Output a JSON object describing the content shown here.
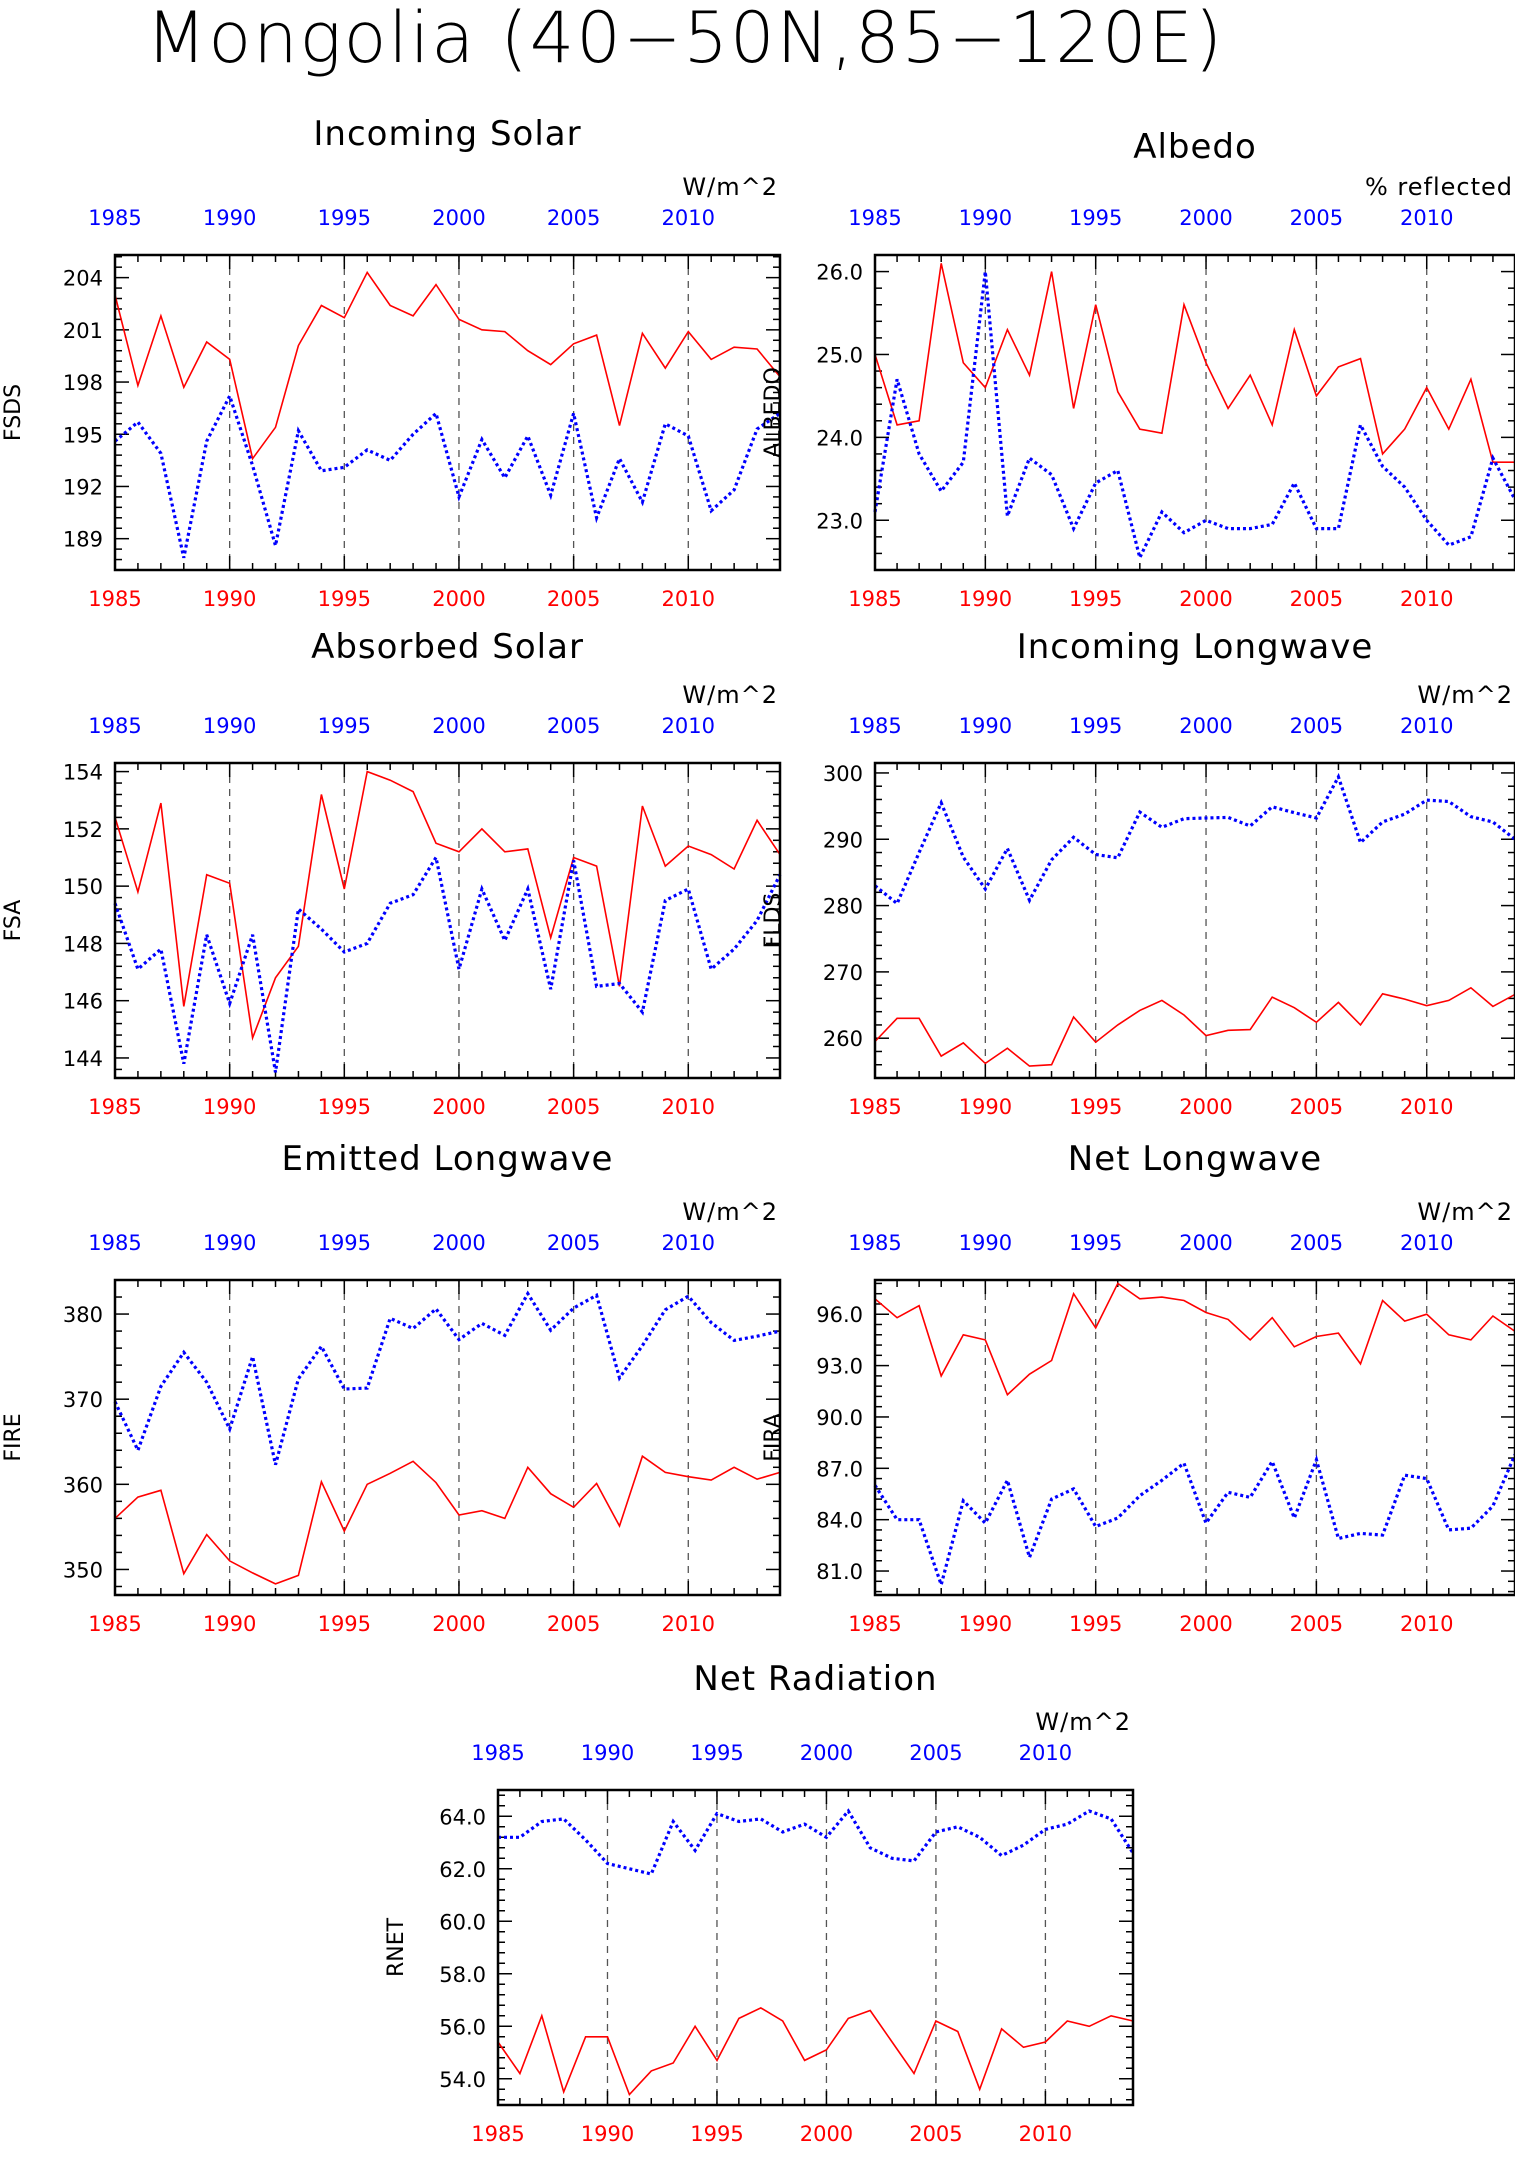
{
  "title": "Mongolia (40−50N,85−120E)",
  "colors": {
    "series_a": "#ff0000",
    "series_b": "#0000ff",
    "axis": "#000000",
    "grid": "#555555"
  },
  "chart_data": [
    {
      "type": "line",
      "title": "Incoming Solar",
      "units": "W/m^2",
      "ylabel": "FSDS",
      "xlim": [
        1985,
        2014
      ],
      "ylim": [
        187.2,
        205.3
      ],
      "yticks": [
        189,
        192,
        195,
        198,
        201,
        204
      ],
      "ytick_labels": [
        "189",
        "192",
        "195",
        "198",
        "201",
        "204"
      ],
      "xticks": [
        1985,
        1990,
        1995,
        2000,
        2005,
        2010
      ],
      "grid": "dashed vertical at 1990, 1995, 2000, 2005, 2010",
      "x": [
        1985,
        1986,
        1987,
        1988,
        1989,
        1990,
        1991,
        1992,
        1993,
        1994,
        1995,
        1996,
        1997,
        1998,
        1999,
        2000,
        2001,
        2002,
        2003,
        2004,
        2005,
        2006,
        2007,
        2008,
        2009,
        2010,
        2011,
        2012,
        2013,
        2014
      ],
      "series": [
        {
          "style": "solid",
          "color": "#ff0000",
          "values": [
            203.0,
            197.8,
            201.8,
            197.7,
            200.3,
            199.3,
            193.6,
            195.4,
            200.1,
            202.4,
            201.7,
            204.3,
            202.4,
            201.8,
            203.6,
            201.6,
            201.0,
            200.9,
            199.8,
            199.0,
            200.2,
            200.7,
            195.5,
            200.8,
            198.8,
            200.9,
            199.3,
            200.0,
            199.9,
            198.3
          ]
        },
        {
          "style": "dotted",
          "color": "#0000ff",
          "values": [
            194.6,
            195.7,
            193.9,
            187.9,
            194.6,
            197.2,
            193.2,
            188.6,
            195.2,
            192.9,
            193.1,
            194.1,
            193.5,
            195.0,
            196.2,
            191.4,
            194.7,
            192.5,
            194.9,
            191.5,
            196.2,
            190.2,
            193.6,
            191.1,
            195.6,
            194.9,
            190.6,
            191.8,
            195.3,
            196.2
          ]
        }
      ]
    },
    {
      "type": "line",
      "title": "Albedo",
      "units": "% reflected",
      "ylabel": "ALBEDO",
      "xlim": [
        1985,
        2014
      ],
      "ylim": [
        22.4,
        26.2
      ],
      "yticks": [
        23.0,
        24.0,
        25.0,
        26.0
      ],
      "ytick_labels": [
        "23.0",
        "24.0",
        "25.0",
        "26.0"
      ],
      "xticks": [
        1985,
        1990,
        1995,
        2000,
        2005,
        2010
      ],
      "grid": "dashed vertical at 1990, 1995, 2000, 2005, 2010",
      "x": [
        1985,
        1986,
        1987,
        1988,
        1989,
        1990,
        1991,
        1992,
        1993,
        1994,
        1995,
        1996,
        1997,
        1998,
        1999,
        2000,
        2001,
        2002,
        2003,
        2004,
        2005,
        2006,
        2007,
        2008,
        2009,
        2010,
        2011,
        2012,
        2013,
        2014
      ],
      "series": [
        {
          "style": "solid",
          "color": "#ff0000",
          "values": [
            25.0,
            24.15,
            24.2,
            26.1,
            24.9,
            24.6,
            25.3,
            24.75,
            26.0,
            24.35,
            25.6,
            24.55,
            24.1,
            24.05,
            25.6,
            24.9,
            24.35,
            24.75,
            24.15,
            25.3,
            24.5,
            24.85,
            24.95,
            23.8,
            24.1,
            24.6,
            24.1,
            24.7,
            23.7,
            23.7
          ]
        },
        {
          "style": "dotted",
          "color": "#0000ff",
          "values": [
            23.1,
            24.7,
            23.8,
            23.35,
            23.7,
            26.0,
            23.05,
            23.75,
            23.55,
            22.9,
            23.45,
            23.6,
            22.55,
            23.1,
            22.85,
            23.0,
            22.9,
            22.9,
            22.95,
            23.45,
            22.9,
            22.9,
            24.15,
            23.65,
            23.4,
            23.0,
            22.7,
            22.8,
            23.75,
            23.25
          ]
        }
      ]
    },
    {
      "type": "line",
      "title": "Absorbed Solar",
      "units": "W/m^2",
      "ylabel": "FSA",
      "xlim": [
        1985,
        2014
      ],
      "ylim": [
        143.3,
        154.3
      ],
      "yticks": [
        144,
        146,
        148,
        150,
        152,
        154
      ],
      "ytick_labels": [
        "144",
        "146",
        "148",
        "150",
        "152",
        "154"
      ],
      "xticks": [
        1985,
        1990,
        1995,
        2000,
        2005,
        2010
      ],
      "grid": "dashed vertical at 1990, 1995, 2000, 2005, 2010",
      "x": [
        1985,
        1986,
        1987,
        1988,
        1989,
        1990,
        1991,
        1992,
        1993,
        1994,
        1995,
        1996,
        1997,
        1998,
        1999,
        2000,
        2001,
        2002,
        2003,
        2004,
        2005,
        2006,
        2007,
        2008,
        2009,
        2010,
        2011,
        2012,
        2013,
        2014
      ],
      "series": [
        {
          "style": "solid",
          "color": "#ff0000",
          "values": [
            152.4,
            149.8,
            152.9,
            145.8,
            150.4,
            150.1,
            144.7,
            146.8,
            147.9,
            153.2,
            149.9,
            154.0,
            153.7,
            153.3,
            151.5,
            151.2,
            152.0,
            151.2,
            151.3,
            148.2,
            151.0,
            150.7,
            146.5,
            152.8,
            150.7,
            151.4,
            151.1,
            150.6,
            152.3,
            151.1
          ]
        },
        {
          "style": "dotted",
          "color": "#0000ff",
          "values": [
            149.4,
            147.1,
            147.8,
            143.8,
            148.3,
            145.9,
            148.3,
            143.5,
            149.2,
            148.5,
            147.7,
            148.0,
            149.4,
            149.7,
            151.0,
            147.1,
            149.9,
            148.1,
            149.9,
            146.4,
            150.9,
            146.5,
            146.6,
            145.6,
            149.5,
            149.9,
            147.1,
            147.8,
            148.8,
            150.4
          ]
        }
      ]
    },
    {
      "type": "line",
      "title": "Incoming Longwave",
      "units": "W/m^2",
      "ylabel": "FLDS",
      "xlim": [
        1985,
        2014
      ],
      "ylim": [
        254.0,
        301.5
      ],
      "yticks": [
        260,
        270,
        280,
        290,
        300
      ],
      "ytick_labels": [
        "260",
        "270",
        "280",
        "290",
        "300"
      ],
      "xticks": [
        1985,
        1990,
        1995,
        2000,
        2005,
        2010
      ],
      "grid": "dashed vertical at 1990, 1995, 2000, 2005, 2010",
      "x": [
        1985,
        1986,
        1987,
        1988,
        1989,
        1990,
        1991,
        1992,
        1993,
        1994,
        1995,
        1996,
        1997,
        1998,
        1999,
        2000,
        2001,
        2002,
        2003,
        2004,
        2005,
        2006,
        2007,
        2008,
        2009,
        2010,
        2011,
        2012,
        2013,
        2014
      ],
      "series": [
        {
          "style": "solid",
          "color": "#ff0000",
          "values": [
            259.5,
            263.0,
            263.0,
            257.3,
            259.3,
            256.2,
            258.5,
            255.8,
            256.0,
            263.2,
            259.4,
            262.0,
            264.2,
            265.7,
            263.5,
            260.4,
            261.2,
            261.3,
            266.2,
            264.6,
            262.4,
            265.4,
            262.0,
            266.7,
            265.9,
            264.9,
            265.7,
            267.6,
            264.8,
            266.6
          ]
        },
        {
          "style": "dotted",
          "color": "#0000ff",
          "values": [
            283.0,
            280.3,
            288.0,
            295.5,
            287.3,
            282.5,
            288.6,
            280.8,
            286.9,
            290.3,
            287.7,
            287.2,
            294.1,
            291.8,
            293.1,
            293.2,
            293.3,
            292.0,
            294.9,
            294.0,
            293.2,
            299.4,
            289.5,
            292.6,
            293.8,
            295.9,
            295.7,
            293.4,
            292.6,
            290.0
          ]
        }
      ]
    },
    {
      "type": "line",
      "title": "Emitted Longwave",
      "units": "W/m^2",
      "ylabel": "FIRE",
      "xlim": [
        1985,
        2014
      ],
      "ylim": [
        347.0,
        384.0
      ],
      "yticks": [
        350,
        360,
        370,
        380
      ],
      "ytick_labels": [
        "350",
        "360",
        "370",
        "380"
      ],
      "xticks": [
        1985,
        1990,
        1995,
        2000,
        2005,
        2010
      ],
      "grid": "dashed vertical at 1990, 1995, 2000, 2005, 2010",
      "x": [
        1985,
        1986,
        1987,
        1988,
        1989,
        1990,
        1991,
        1992,
        1993,
        1994,
        1995,
        1996,
        1997,
        1998,
        1999,
        2000,
        2001,
        2002,
        2003,
        2004,
        2005,
        2006,
        2007,
        2008,
        2009,
        2010,
        2011,
        2012,
        2013,
        2014
      ],
      "series": [
        {
          "style": "solid",
          "color": "#ff0000",
          "values": [
            356.0,
            358.5,
            359.3,
            349.5,
            354.1,
            351.0,
            349.6,
            348.3,
            349.3,
            360.3,
            354.5,
            360.0,
            361.3,
            362.7,
            360.2,
            356.4,
            356.9,
            356.0,
            362.0,
            358.9,
            357.3,
            360.1,
            355.1,
            363.3,
            361.4,
            360.9,
            360.5,
            362.0,
            360.6,
            361.4
          ]
        },
        {
          "style": "dotted",
          "color": "#0000ff",
          "values": [
            369.7,
            364.0,
            371.5,
            375.5,
            372.0,
            366.5,
            375.0,
            362.3,
            372.4,
            376.2,
            371.2,
            371.3,
            379.5,
            378.3,
            380.6,
            377.0,
            378.9,
            377.5,
            382.4,
            378.1,
            380.7,
            382.2,
            372.5,
            376.3,
            380.5,
            382.1,
            379.0,
            376.9,
            377.4,
            378.0
          ]
        }
      ]
    },
    {
      "type": "line",
      "title": "Net Longwave",
      "units": "W/m^2",
      "ylabel": "FIRA",
      "xlim": [
        1985,
        2014
      ],
      "ylim": [
        79.6,
        98.0
      ],
      "yticks": [
        81.0,
        84.0,
        87.0,
        90.0,
        93.0,
        96.0
      ],
      "ytick_labels": [
        "81.0",
        "84.0",
        "87.0",
        "90.0",
        "93.0",
        "96.0"
      ],
      "xticks": [
        1985,
        1990,
        1995,
        2000,
        2005,
        2010
      ],
      "grid": "dashed vertical at 1990, 1995, 2000, 2005, 2010",
      "x": [
        1985,
        1986,
        1987,
        1988,
        1989,
        1990,
        1991,
        1992,
        1993,
        1994,
        1995,
        1996,
        1997,
        1998,
        1999,
        2000,
        2001,
        2002,
        2003,
        2004,
        2005,
        2006,
        2007,
        2008,
        2009,
        2010,
        2011,
        2012,
        2013,
        2014
      ],
      "series": [
        {
          "style": "solid",
          "color": "#ff0000",
          "values": [
            96.9,
            95.8,
            96.5,
            92.4,
            94.8,
            94.5,
            91.3,
            92.5,
            93.3,
            97.2,
            95.2,
            97.8,
            96.9,
            97.0,
            96.8,
            96.1,
            95.7,
            94.5,
            95.8,
            94.1,
            94.7,
            94.9,
            93.1,
            96.8,
            95.6,
            96.0,
            94.8,
            94.5,
            95.9,
            95.0
          ]
        },
        {
          "style": "dotted",
          "color": "#0000ff",
          "values": [
            86.0,
            84.0,
            84.0,
            80.2,
            85.1,
            83.8,
            86.3,
            81.8,
            85.2,
            85.8,
            83.6,
            84.1,
            85.4,
            86.3,
            87.3,
            83.8,
            85.6,
            85.3,
            87.4,
            84.1,
            87.5,
            82.9,
            83.2,
            83.1,
            86.6,
            86.4,
            83.4,
            83.5,
            84.8,
            87.8
          ]
        }
      ]
    },
    {
      "type": "line",
      "title": "Net Radiation",
      "units": "W/m^2",
      "ylabel": "RNET",
      "xlim": [
        1985,
        2014
      ],
      "ylim": [
        53.0,
        65.0
      ],
      "yticks": [
        54.0,
        56.0,
        58.0,
        60.0,
        62.0,
        64.0
      ],
      "ytick_labels": [
        "54.0",
        "56.0",
        "58.0",
        "60.0",
        "62.0",
        "64.0"
      ],
      "xticks": [
        1985,
        1990,
        1995,
        2000,
        2005,
        2010
      ],
      "grid": "dashed vertical at 1990, 1995, 2000, 2005, 2010",
      "x": [
        1985,
        1986,
        1987,
        1988,
        1989,
        1990,
        1991,
        1992,
        1993,
        1994,
        1995,
        1996,
        1997,
        1998,
        1999,
        2000,
        2001,
        2002,
        2003,
        2004,
        2005,
        2006,
        2007,
        2008,
        2009,
        2010,
        2011,
        2012,
        2013,
        2014
      ],
      "series": [
        {
          "style": "solid",
          "color": "#ff0000",
          "values": [
            55.4,
            54.2,
            56.4,
            53.5,
            55.6,
            55.6,
            53.4,
            54.3,
            54.6,
            56.0,
            54.7,
            56.3,
            56.7,
            56.2,
            54.7,
            55.1,
            56.3,
            56.6,
            55.4,
            54.2,
            56.2,
            55.8,
            53.6,
            55.9,
            55.2,
            55.4,
            56.2,
            56.0,
            56.4,
            56.2
          ]
        },
        {
          "style": "dotted",
          "color": "#0000ff",
          "values": [
            63.2,
            63.2,
            63.8,
            63.9,
            63.1,
            62.2,
            62.0,
            61.8,
            63.8,
            62.7,
            64.1,
            63.8,
            63.9,
            63.4,
            63.7,
            63.2,
            64.2,
            62.8,
            62.4,
            62.3,
            63.4,
            63.6,
            63.2,
            62.5,
            62.9,
            63.5,
            63.7,
            64.2,
            63.9,
            62.6
          ]
        }
      ]
    }
  ]
}
